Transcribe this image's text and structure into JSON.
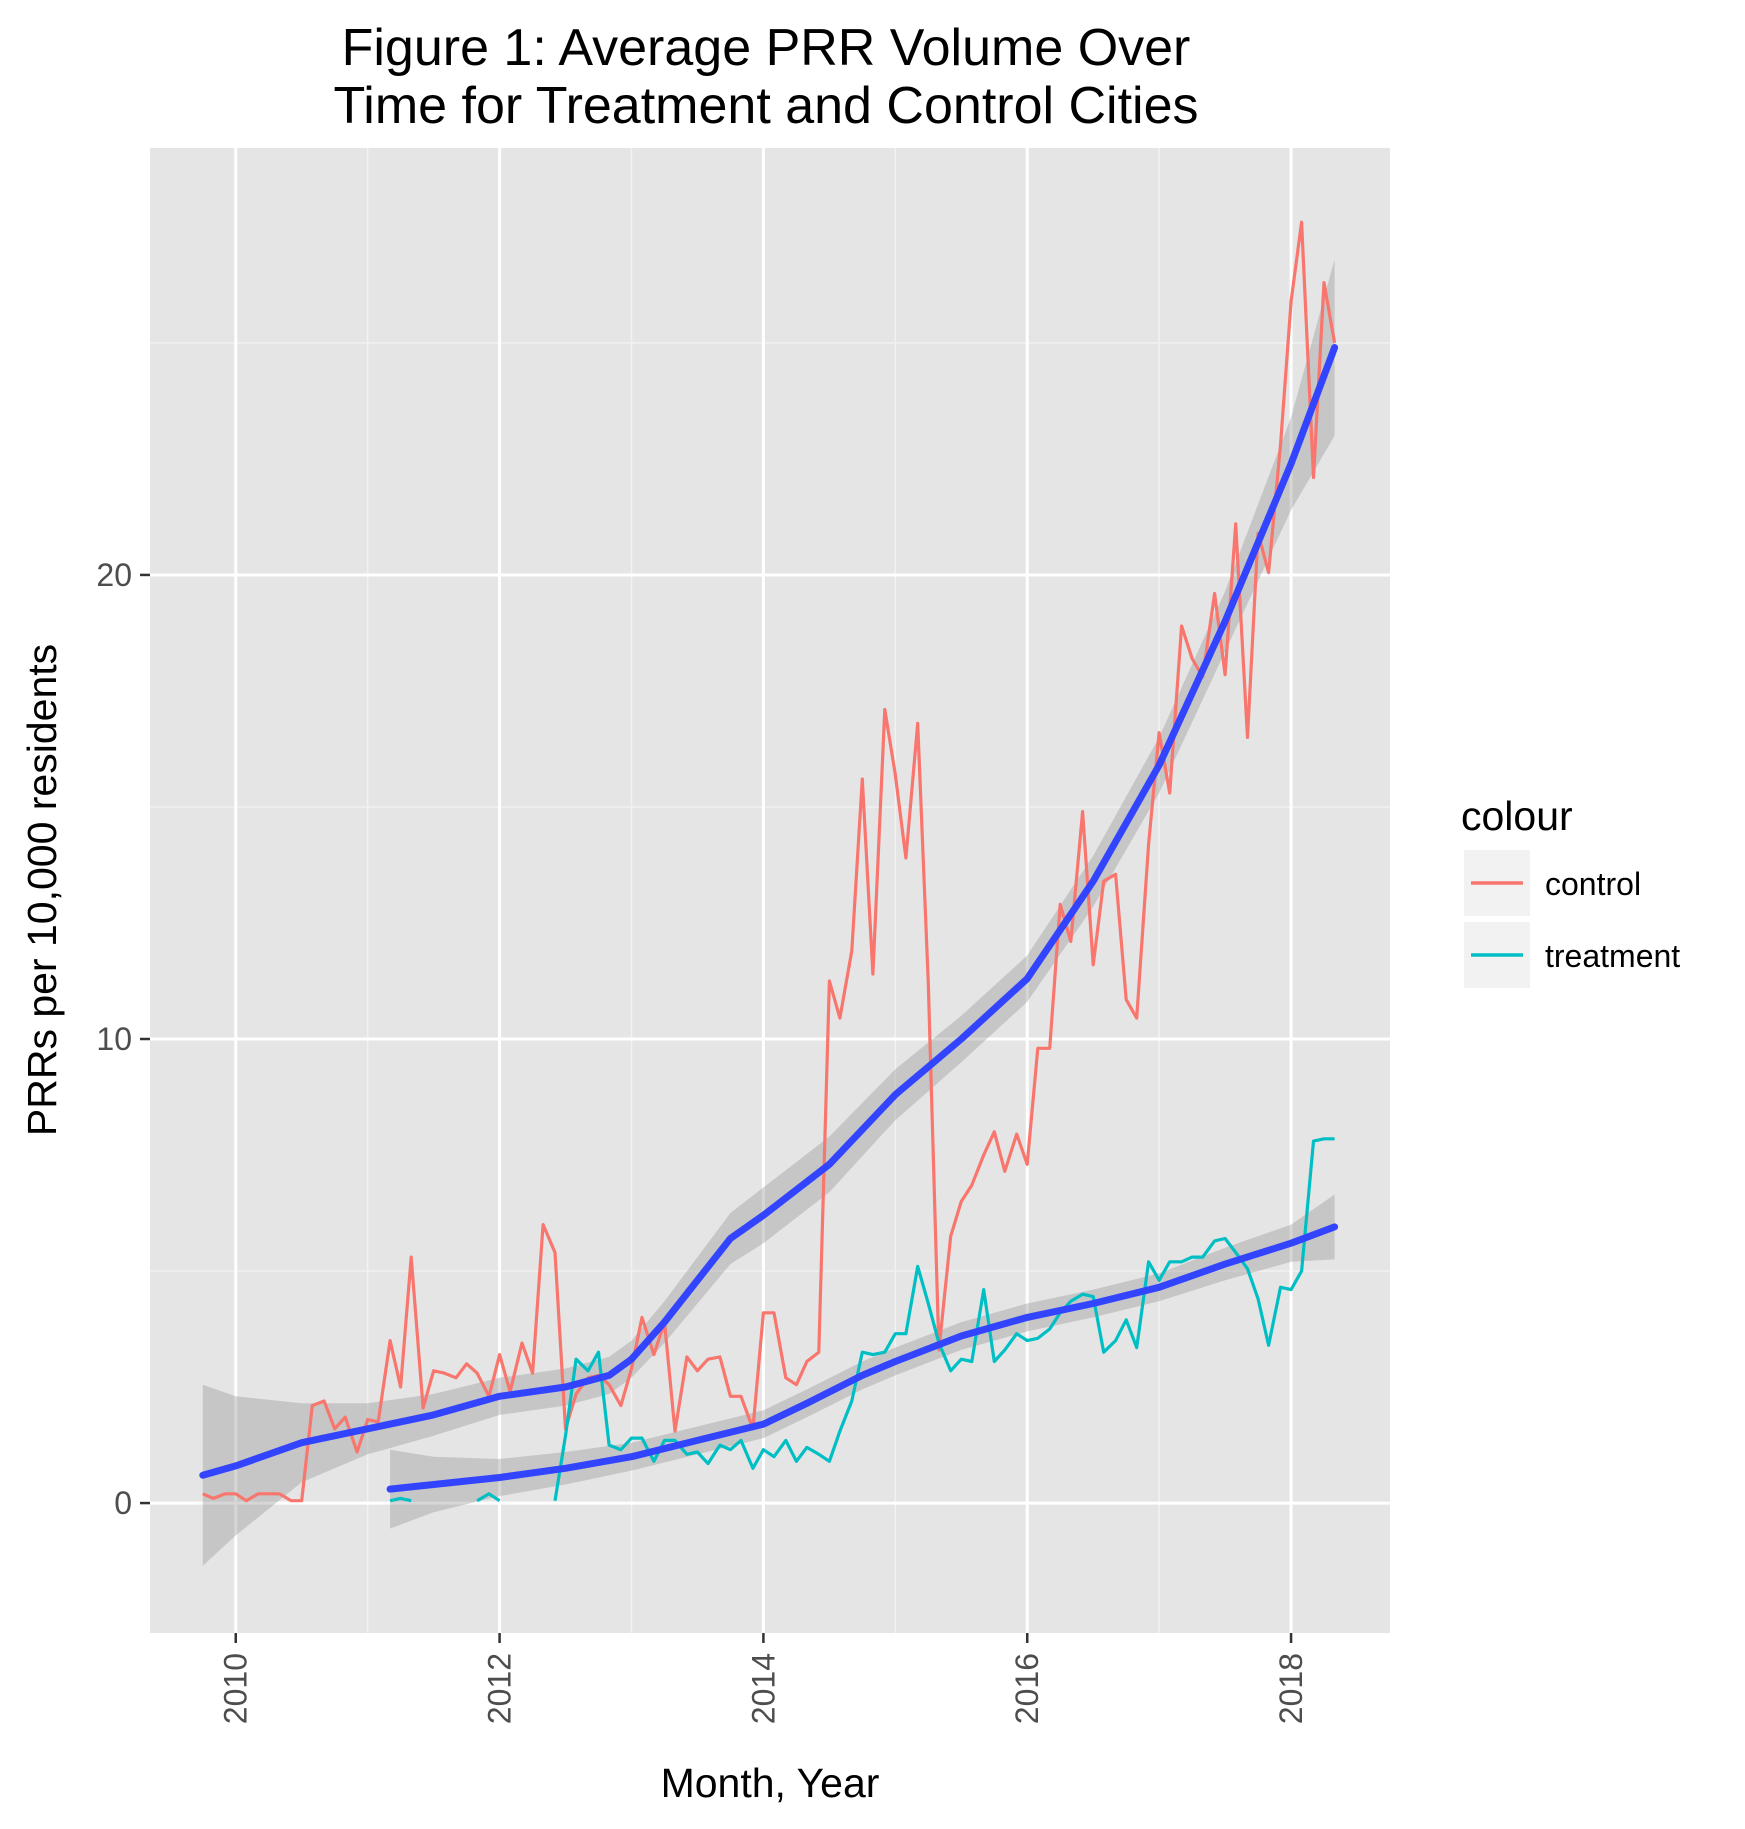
{
  "chart_data": {
    "type": "line",
    "title_lines": [
      "Figure 1: Average PRR Volume Over",
      "Time for Treatment and Control Cities"
    ],
    "xlabel": "Month, Year",
    "ylabel": "PRRs per 10,000 residents",
    "xlim": [
      2009.35,
      2018.75
    ],
    "ylim": [
      -2.8,
      29.2
    ],
    "x_ticks": [
      2010,
      2012,
      2014,
      2016,
      2018
    ],
    "x_tick_labels": [
      "2010",
      "2012",
      "2014",
      "2016",
      "2018"
    ],
    "y_ticks": [
      0,
      10,
      20
    ],
    "y_tick_labels": [
      "0",
      "10",
      "20"
    ],
    "grid": true,
    "legend": {
      "title": "colour",
      "position": "right"
    },
    "series": [
      {
        "name": "control",
        "color": "#F8766D",
        "x": [
          2009.75,
          2009.83,
          2009.92,
          2010.0,
          2010.08,
          2010.17,
          2010.25,
          2010.33,
          2010.42,
          2010.5,
          2010.58,
          2010.67,
          2010.75,
          2010.83,
          2010.92,
          2011.0,
          2011.08,
          2011.17,
          2011.25,
          2011.33,
          2011.42,
          2011.5,
          2011.58,
          2011.67,
          2011.75,
          2011.83,
          2011.92,
          2012.0,
          2012.08,
          2012.17,
          2012.25,
          2012.33,
          2012.42,
          2012.5,
          2012.58,
          2012.67,
          2012.75,
          2012.83,
          2012.92,
          2013.0,
          2013.08,
          2013.17,
          2013.25,
          2013.33,
          2013.42,
          2013.5,
          2013.58,
          2013.67,
          2013.75,
          2013.83,
          2013.92,
          2014.0,
          2014.08,
          2014.17,
          2014.25,
          2014.33,
          2014.42,
          2014.5,
          2014.58,
          2014.67,
          2014.75,
          2014.83,
          2014.92,
          2015.0,
          2015.08,
          2015.17,
          2015.25,
          2015.33,
          2015.42,
          2015.5,
          2015.58,
          2015.67,
          2015.75,
          2015.83,
          2015.92,
          2016.0,
          2016.08,
          2016.17,
          2016.25,
          2016.33,
          2016.42,
          2016.5,
          2016.58,
          2016.67,
          2016.75,
          2016.83,
          2016.92,
          2017.0,
          2017.08,
          2017.17,
          2017.25,
          2017.33,
          2017.42,
          2017.5,
          2017.58,
          2017.67,
          2017.75,
          2017.83,
          2017.92,
          2018.0,
          2018.08,
          2018.17,
          2018.25,
          2018.33
        ],
        "y": [
          0.2,
          0.1,
          0.2,
          0.2,
          0.05,
          0.2,
          0.2,
          0.2,
          0.05,
          0.05,
          2.1,
          2.2,
          1.6,
          1.85,
          1.1,
          1.8,
          1.75,
          3.5,
          2.5,
          5.3,
          2.05,
          2.85,
          2.8,
          2.7,
          3.0,
          2.8,
          2.3,
          3.2,
          2.4,
          3.45,
          2.8,
          6.0,
          5.4,
          1.6,
          2.35,
          2.7,
          2.75,
          2.55,
          2.1,
          2.9,
          4.0,
          3.2,
          3.9,
          1.55,
          3.15,
          2.85,
          3.1,
          3.15,
          2.3,
          2.3,
          1.6,
          4.1,
          4.1,
          2.7,
          2.55,
          3.05,
          3.25,
          11.25,
          10.45,
          11.9,
          15.6,
          11.4,
          17.1,
          15.7,
          13.9,
          16.8,
          11.2,
          3.3,
          5.75,
          6.5,
          6.85,
          7.5,
          8.0,
          7.15,
          7.95,
          7.3,
          9.8,
          9.8,
          12.9,
          12.1,
          14.9,
          11.6,
          13.4,
          13.55,
          10.85,
          10.45,
          14.2,
          16.6,
          15.3,
          18.9,
          18.2,
          17.8,
          19.6,
          17.85,
          21.1,
          16.5,
          20.9,
          20.05,
          22.8,
          25.9,
          27.6,
          22.1,
          26.3,
          25.0
        ]
      },
      {
        "name": "treatment",
        "color": "#00BFC4",
        "segments": [
          {
            "x": [
              2011.17,
              2011.25,
              2011.33
            ],
            "y": [
              0.05,
              0.1,
              0.05
            ]
          },
          {
            "x": [
              2011.83,
              2011.92,
              2012.0
            ],
            "y": [
              0.05,
              0.2,
              0.05
            ]
          },
          {
            "x": [
              2012.42,
              2012.5,
              2012.58,
              2012.67,
              2012.75,
              2012.83,
              2012.92,
              2013.0,
              2013.08,
              2013.17,
              2013.25,
              2013.33,
              2013.42,
              2013.5,
              2013.58,
              2013.67,
              2013.75,
              2013.83,
              2013.92,
              2014.0,
              2014.08,
              2014.17,
              2014.25,
              2014.33,
              2014.42,
              2014.5,
              2014.58,
              2014.67,
              2014.75,
              2014.83,
              2014.92,
              2015.0,
              2015.08,
              2015.17,
              2015.25,
              2015.33,
              2015.42,
              2015.5,
              2015.58,
              2015.67,
              2015.75,
              2015.83,
              2015.92,
              2016.0,
              2016.08,
              2016.17,
              2016.25,
              2016.33,
              2016.42,
              2016.5,
              2016.58,
              2016.67,
              2016.75,
              2016.83,
              2016.92,
              2017.0,
              2017.08,
              2017.17,
              2017.25,
              2017.33,
              2017.42,
              2017.5,
              2017.58,
              2017.67,
              2017.75,
              2017.83,
              2017.92,
              2018.0,
              2018.08,
              2018.17,
              2018.25,
              2018.33
            ],
            "y": [
              0.05,
              1.45,
              3.1,
              2.85,
              3.25,
              1.25,
              1.15,
              1.4,
              1.4,
              0.9,
              1.35,
              1.35,
              1.05,
              1.1,
              0.85,
              1.25,
              1.15,
              1.35,
              0.75,
              1.15,
              1.0,
              1.35,
              0.9,
              1.2,
              1.05,
              0.9,
              1.55,
              2.2,
              3.25,
              3.2,
              3.25,
              3.65,
              3.65,
              5.1,
              4.3,
              3.45,
              2.85,
              3.1,
              3.05,
              4.6,
              3.05,
              3.3,
              3.65,
              3.5,
              3.55,
              3.75,
              4.1,
              4.35,
              4.5,
              4.45,
              3.25,
              3.5,
              3.95,
              3.35,
              5.2,
              4.8,
              5.2,
              5.2,
              5.3,
              5.3,
              5.65,
              5.7,
              5.4,
              5.05,
              4.4,
              3.4,
              4.65,
              4.6,
              5.0,
              7.8,
              7.85,
              7.85
            ]
          }
        ]
      }
    ],
    "smooth": [
      {
        "group": "control",
        "color": "#3344FF",
        "x": [
          2009.75,
          2010.0,
          2010.5,
          2011.0,
          2011.5,
          2012.0,
          2012.5,
          2012.83,
          2013.0,
          2013.25,
          2013.5,
          2013.75,
          2014.0,
          2014.5,
          2015.0,
          2015.5,
          2016.0,
          2016.5,
          2017.0,
          2017.5,
          2018.0,
          2018.33
        ],
        "y": [
          0.6,
          0.8,
          1.3,
          1.6,
          1.9,
          2.3,
          2.5,
          2.75,
          3.1,
          3.9,
          4.8,
          5.7,
          6.2,
          7.3,
          8.8,
          10.0,
          11.3,
          13.4,
          15.9,
          19.0,
          22.4,
          24.9
        ],
        "ci_width": [
          1.95,
          1.5,
          0.85,
          0.55,
          0.45,
          0.4,
          0.4,
          0.4,
          0.4,
          0.45,
          0.5,
          0.55,
          0.6,
          0.6,
          0.55,
          0.5,
          0.5,
          0.55,
          0.6,
          0.65,
          1.0,
          1.9
        ]
      },
      {
        "group": "treatment",
        "color": "#3344FF",
        "x": [
          2011.17,
          2011.5,
          2012.0,
          2012.5,
          2013.0,
          2013.5,
          2014.0,
          2014.33,
          2014.75,
          2015.0,
          2015.5,
          2016.0,
          2016.5,
          2017.0,
          2017.5,
          2018.0,
          2018.33
        ],
        "y": [
          0.3,
          0.4,
          0.55,
          0.75,
          1.0,
          1.35,
          1.7,
          2.15,
          2.75,
          3.05,
          3.6,
          4.0,
          4.3,
          4.65,
          5.15,
          5.6,
          5.95
        ],
        "ci_width": [
          0.85,
          0.6,
          0.4,
          0.35,
          0.3,
          0.3,
          0.3,
          0.3,
          0.3,
          0.3,
          0.3,
          0.3,
          0.3,
          0.3,
          0.35,
          0.4,
          0.7
        ]
      }
    ]
  }
}
